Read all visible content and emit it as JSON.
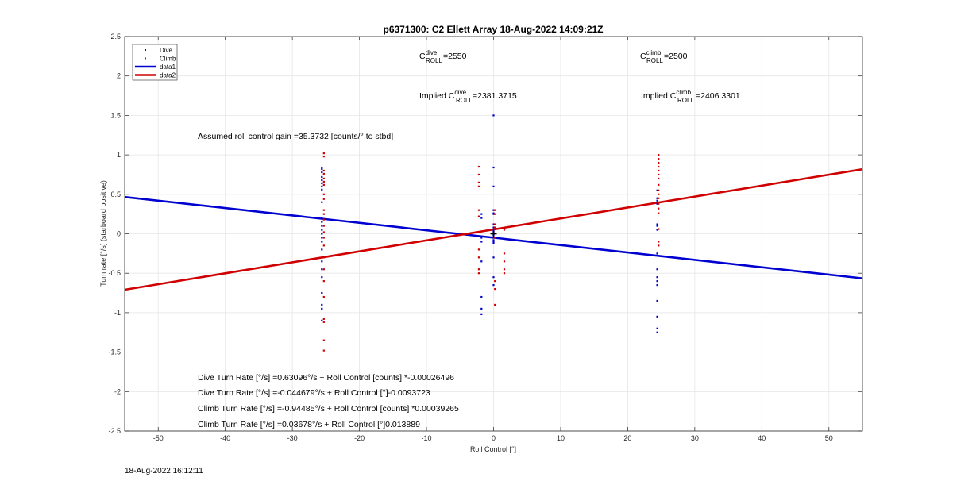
{
  "footer_timestamp": "18-Aug-2022 16:12:11",
  "chart_data": {
    "type": "scatter",
    "title": "p6371300: C2 Ellett Array 18-Aug-2022 14:09:21Z",
    "xlabel": "Roll Control [°]",
    "ylabel": "Turn rate [°/s] (starboard positive)",
    "xlim": [
      -55,
      55
    ],
    "ylim": [
      -2.5,
      2.5
    ],
    "grid": true,
    "legend_position": "top-left",
    "x_ticks": [
      -50,
      -40,
      -30,
      -20,
      -10,
      0,
      10,
      20,
      30,
      40,
      50
    ],
    "y_ticks": [
      2.5,
      2,
      1.5,
      1,
      0.5,
      0,
      -0.5,
      -1,
      -1.5,
      -2,
      -2.5
    ],
    "x_tick_labels": [
      "-50",
      "-40",
      "-30",
      "-20",
      "-10",
      "0",
      "10",
      "20",
      "30",
      "40",
      "50"
    ],
    "y_tick_labels": [
      "2.5",
      "2",
      "1.5",
      "1",
      "0.5",
      "0",
      "-0.5",
      "-1",
      "-1.5",
      "-2",
      "-2.5"
    ],
    "colors": {
      "dive": "#0000d0",
      "climb": "#d00000",
      "data1": "#0000d0",
      "data2": "#d00000"
    },
    "legend": [
      {
        "label": "Dive",
        "kind": "point",
        "color": "#0000d0"
      },
      {
        "label": "Climb",
        "kind": "point",
        "color": "#d00000"
      },
      {
        "label": "data1",
        "kind": "line",
        "color": "#0000d0"
      },
      {
        "label": "data2",
        "kind": "line",
        "color": "#d00000"
      }
    ],
    "series": [
      {
        "name": "Dive",
        "kind": "scatter",
        "color": "#0000d0",
        "x": [
          -25.6,
          -25.6,
          -25.6,
          -25.6,
          -25.6,
          -25.6,
          -25.6,
          -25.6,
          -25.6,
          -25.6,
          -25.6,
          -25.6,
          -25.6,
          -25.6,
          -25.6,
          -25.6,
          -25.6,
          -25.6,
          -25.6,
          -25.6,
          -25.6,
          -25.6,
          -25.6,
          -25.6,
          -1.8,
          -1.8,
          -1.8,
          -1.8,
          -1.8,
          -1.8,
          -1.8,
          -1.8,
          0,
          0,
          0,
          0,
          0,
          0,
          0,
          0,
          0,
          0,
          0,
          0,
          0,
          0,
          0,
          0,
          0,
          0,
          0,
          24.4,
          24.4,
          24.4,
          24.4,
          24.4,
          24.4,
          24.4,
          24.4,
          24.4,
          24.4,
          24.4,
          24.4,
          24.4,
          24.4,
          24.4,
          24.4
        ],
        "y": [
          0.84,
          0.82,
          0.78,
          0.72,
          0.68,
          0.64,
          0.6,
          0.56,
          0.4,
          0.2,
          0.15,
          0.1,
          0.05,
          0.0,
          -0.05,
          -0.1,
          -0.2,
          -0.35,
          -0.45,
          -0.55,
          -0.75,
          -0.9,
          -0.95,
          -1.1,
          0.25,
          0.2,
          -0.05,
          -0.1,
          -0.35,
          -0.8,
          -0.95,
          -1.02,
          1.5,
          0.84,
          0.6,
          0.3,
          0.26,
          0.25,
          0.12,
          0.08,
          0.04,
          0.02,
          0.0,
          -0.02,
          -0.05,
          -0.08,
          -0.1,
          -0.12,
          -0.3,
          -0.55,
          -0.65,
          0.55,
          0.45,
          0.42,
          0.38,
          0.12,
          0.1,
          0.05,
          -0.25,
          -0.45,
          -0.55,
          -0.6,
          -0.65,
          -0.85,
          -1.05,
          -1.2,
          -1.25
        ]
      },
      {
        "name": "Climb",
        "kind": "scatter",
        "color": "#d00000",
        "x": [
          -25.3,
          -25.3,
          -25.3,
          -25.3,
          -25.3,
          -25.3,
          -25.3,
          -25.3,
          -25.3,
          -25.3,
          -25.3,
          -25.3,
          -25.3,
          -25.3,
          -25.3,
          -25.3,
          -25.3,
          -25.3,
          -25.3,
          -25.3,
          -25.3,
          -25.3,
          -25.3,
          -25.3,
          -2.2,
          -2.2,
          -2.2,
          -2.2,
          -2.2,
          -2.2,
          -2.2,
          -2.2,
          -2.2,
          -2.2,
          0.2,
          0.2,
          0.2,
          0.2,
          0.2,
          0.2,
          0.2,
          0.2,
          1.6,
          1.6,
          1.6,
          1.6,
          1.6,
          24.6,
          24.6,
          24.6,
          24.6,
          24.6,
          24.6,
          24.6,
          24.6,
          24.6,
          24.6,
          24.6,
          24.6,
          24.6,
          24.6,
          24.6,
          24.6,
          24.6
        ],
        "y": [
          1.02,
          0.98,
          0.8,
          0.76,
          0.7,
          0.66,
          0.62,
          0.5,
          0.44,
          0.3,
          0.25,
          0.18,
          0.1,
          0.02,
          -0.05,
          -0.15,
          -0.3,
          -0.45,
          -0.6,
          -0.8,
          -1.08,
          -1.12,
          -1.35,
          -1.48,
          0.85,
          0.75,
          0.65,
          0.6,
          0.3,
          0.22,
          -0.2,
          -0.3,
          -0.45,
          -0.5,
          0.3,
          0.25,
          0.12,
          0.08,
          -0.05,
          -0.6,
          -0.7,
          -0.9,
          0.05,
          -0.25,
          -0.35,
          -0.45,
          -0.5,
          1.0,
          0.95,
          0.9,
          0.85,
          0.8,
          0.75,
          0.7,
          0.62,
          0.55,
          0.5,
          0.45,
          0.38,
          0.32,
          0.26,
          0.06,
          -0.1,
          -0.15
        ]
      },
      {
        "name": "data1",
        "kind": "line",
        "color": "#0000d0",
        "x": [
          -55,
          55
        ],
        "y": [
          0.4661,
          -0.5647
        ]
      },
      {
        "name": "data2",
        "kind": "line",
        "color": "#d00000",
        "x": [
          -55,
          55
        ],
        "y": [
          -0.709,
          0.8182
        ]
      }
    ],
    "annotations": {
      "c_roll_dive": {
        "prefix": "C",
        "sup": "dive",
        "sub": "ROLL",
        "suffix": " =2550"
      },
      "c_roll_climb": {
        "prefix": "C",
        "sup": "climb",
        "sub": "ROLL",
        "suffix": " =2500"
      },
      "implied_dive": {
        "prefix": "Implied C",
        "sup": "dive",
        "sub": "ROLL",
        "suffix": " =2381.3715"
      },
      "implied_climb": {
        "prefix": "Implied C",
        "sup": "climb",
        "sub": "ROLL",
        "suffix": " =2406.3301"
      },
      "gain": "Assumed roll control gain =35.3732 [counts/° to stbd]",
      "fits": [
        "Dive Turn Rate [°/s] =0.63096°/s + Roll Control [counts] *-0.00026496",
        "Dive Turn Rate [°/s] =-0.044679°/s + Roll Control [°]-0.0093723",
        "Climb Turn Rate [°/s] =-0.94485°/s + Roll Control [counts] *0.00039265",
        "Climb Turn Rate [°/s] =0.03678°/s + Roll Control [°]0.013889"
      ]
    },
    "center_marker": {
      "x": 0,
      "y": 0,
      "symbol": "+"
    }
  }
}
